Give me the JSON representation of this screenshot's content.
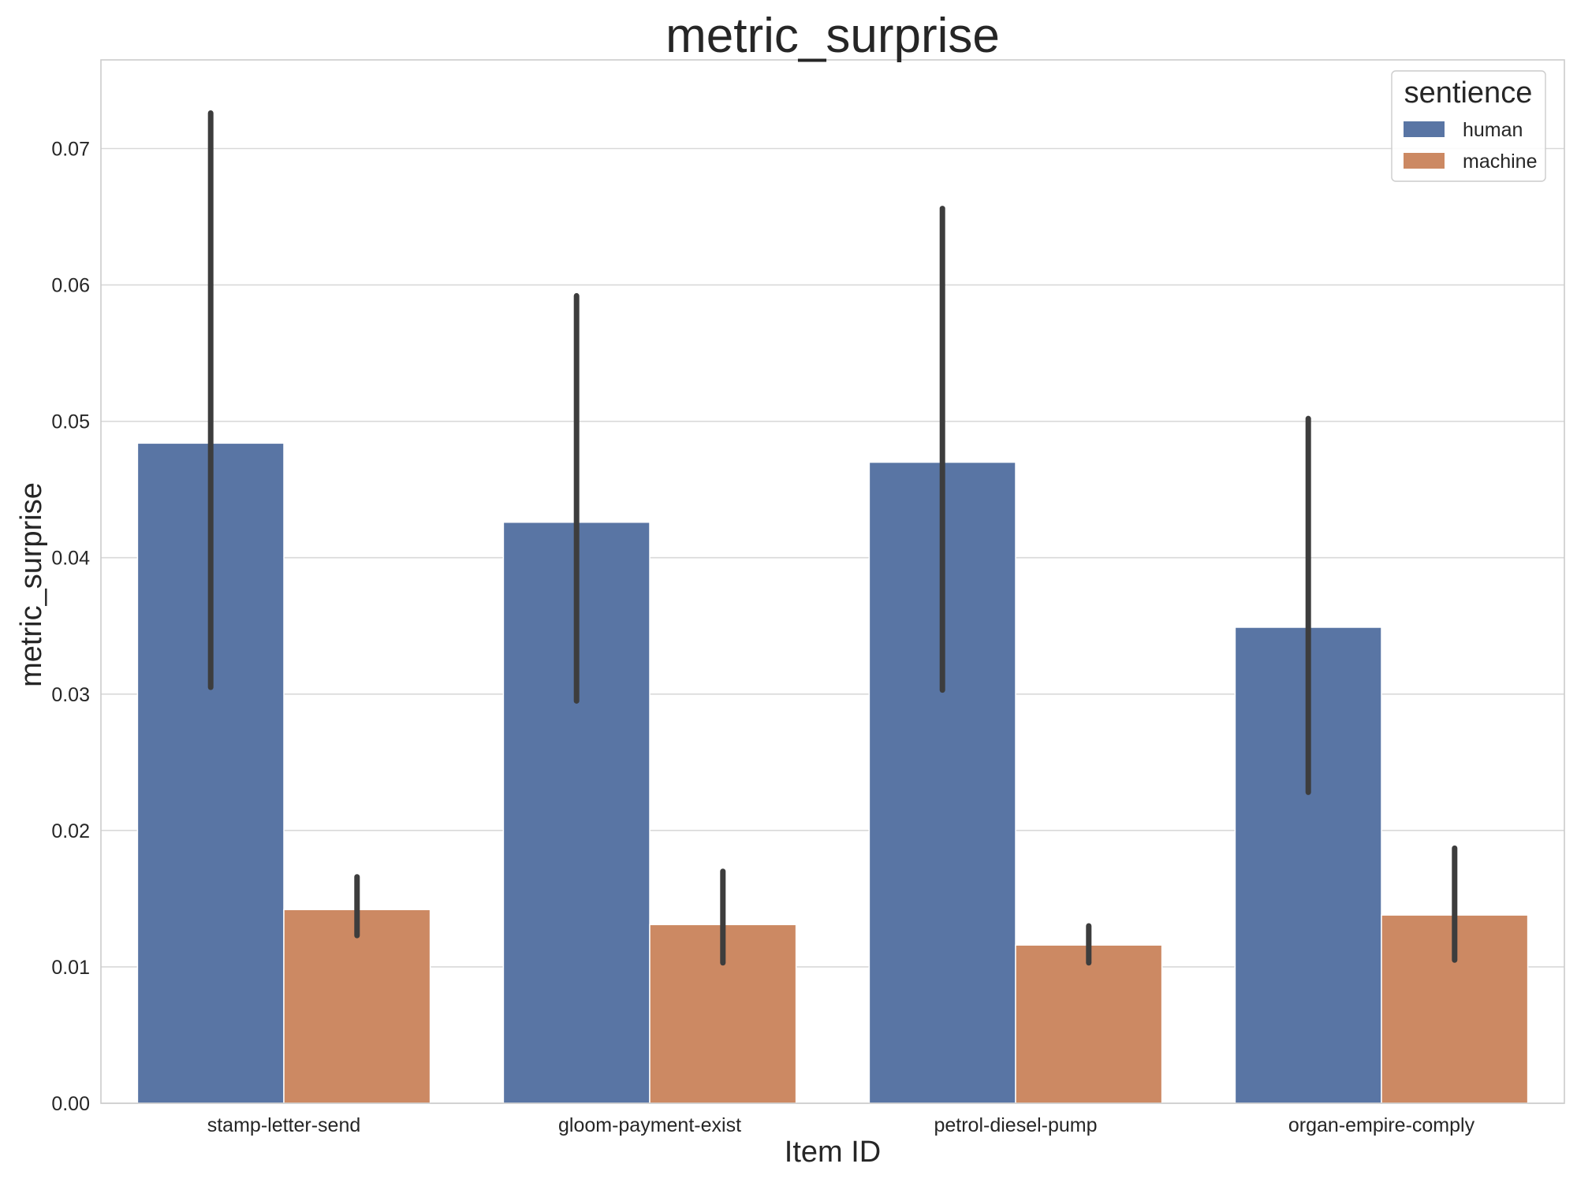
{
  "chart_data": {
    "type": "bar",
    "title": "metric_surprise",
    "xlabel": "Item ID",
    "ylabel": "metric_surprise",
    "categories": [
      "stamp-letter-send",
      "gloom-payment-exist",
      "petrol-diesel-pump",
      "organ-empire-comply"
    ],
    "ylim": [
      0,
      0.0765
    ],
    "yticks": [
      "0.00",
      "0.01",
      "0.02",
      "0.03",
      "0.04",
      "0.05",
      "0.06",
      "0.07"
    ],
    "grid": "horizontal",
    "legend": {
      "title": "sentience",
      "position": "top-right"
    },
    "series": [
      {
        "name": "human",
        "color": "#5975a4",
        "values": [
          0.0484,
          0.0426,
          0.047,
          0.0349
        ],
        "err_low": [
          0.0305,
          0.0295,
          0.0303,
          0.0228
        ],
        "err_high": [
          0.0726,
          0.0592,
          0.0656,
          0.0502
        ]
      },
      {
        "name": "machine",
        "color": "#cc8963",
        "values": [
          0.0142,
          0.0131,
          0.0116,
          0.0138
        ],
        "err_low": [
          0.0123,
          0.0103,
          0.0103,
          0.0105
        ],
        "err_high": [
          0.0166,
          0.017,
          0.013,
          0.0187
        ]
      }
    ]
  }
}
